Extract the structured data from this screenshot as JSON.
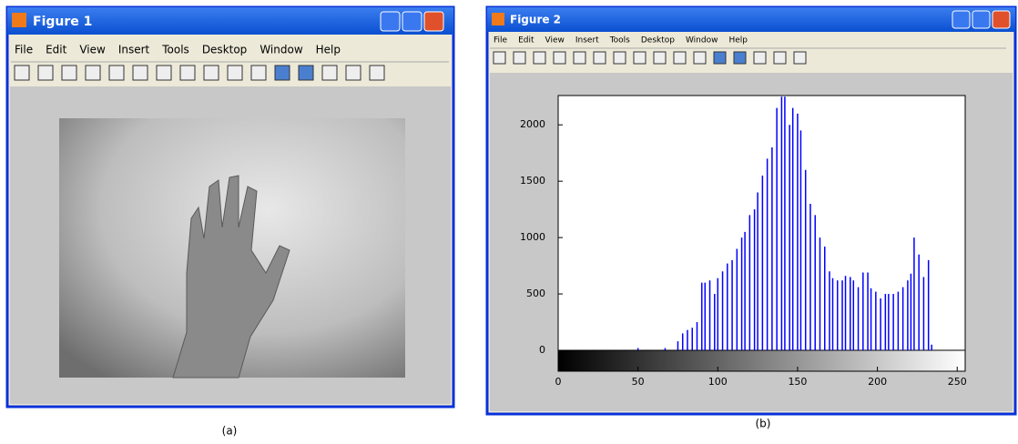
{
  "windows": [
    {
      "title": "Figure 1",
      "menu": [
        "File",
        "Edit",
        "View",
        "Insert",
        "Tools",
        "Desktop",
        "Window",
        "Help"
      ]
    },
    {
      "title": "Figure 2",
      "menu": [
        "File",
        "Edit",
        "View",
        "Insert",
        "Tools",
        "Desktop",
        "Window",
        "Help"
      ]
    }
  ],
  "captions": [
    "(a)",
    "(b)"
  ],
  "chart_data": {
    "type": "stem",
    "color": "#0000ff",
    "x": [
      50,
      67,
      75,
      78,
      81,
      84,
      87,
      90,
      92,
      95,
      98,
      100,
      103,
      106,
      109,
      112,
      115,
      117,
      120,
      123,
      125,
      128,
      131,
      134,
      137,
      140,
      142,
      145,
      147,
      150,
      152,
      155,
      158,
      161,
      164,
      167,
      170,
      172,
      175,
      178,
      180,
      183,
      185,
      188,
      191,
      194,
      196,
      199,
      202,
      205,
      207,
      210,
      213,
      216,
      219,
      221,
      223,
      226,
      229,
      232,
      234
    ],
    "values": [
      20,
      20,
      80,
      150,
      180,
      200,
      250,
      600,
      600,
      620,
      500,
      640,
      700,
      770,
      800,
      900,
      1000,
      1050,
      1200,
      1250,
      1400,
      1550,
      1700,
      1800,
      2150,
      2250,
      2250,
      2000,
      2150,
      2100,
      1950,
      1600,
      1300,
      1200,
      1000,
      920,
      700,
      640,
      620,
      620,
      660,
      650,
      620,
      560,
      690,
      690,
      550,
      520,
      460,
      500,
      500,
      500,
      520,
      560,
      620,
      680,
      1000,
      850,
      650,
      800,
      50
    ],
    "xlim": [
      0,
      255
    ],
    "ylim": [
      0,
      2260
    ],
    "xticks": [
      0,
      50,
      100,
      150,
      200,
      250
    ],
    "yticks": [
      0,
      500,
      1000,
      1500,
      2000
    ]
  }
}
